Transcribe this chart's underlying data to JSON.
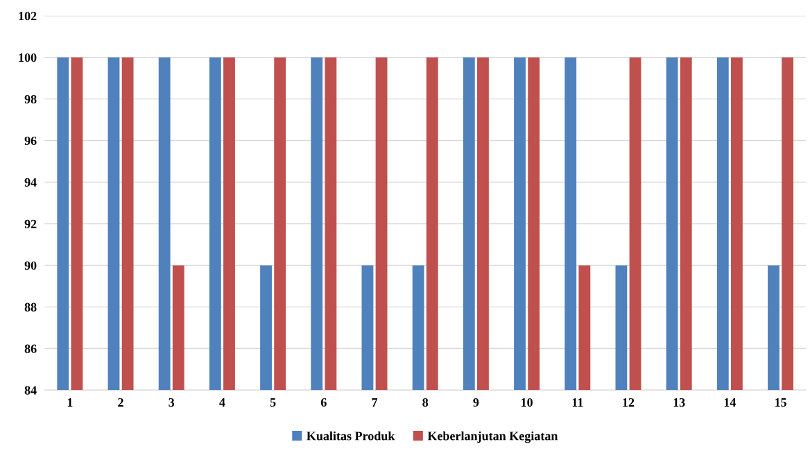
{
  "chart_data": {
    "type": "bar",
    "categories": [
      "1",
      "2",
      "3",
      "4",
      "5",
      "6",
      "7",
      "8",
      "9",
      "10",
      "11",
      "12",
      "13",
      "14",
      "15"
    ],
    "series": [
      {
        "name": "Kualitas Produk",
        "color": "#4f81bd",
        "values": [
          100,
          100,
          100,
          100,
          90,
          100,
          90,
          90,
          100,
          100,
          100,
          90,
          100,
          100,
          90
        ]
      },
      {
        "name": "Keberlanjutan Kegiatan",
        "color": "#c0504d",
        "values": [
          100,
          100,
          90,
          100,
          100,
          100,
          100,
          100,
          100,
          100,
          90,
          100,
          100,
          100,
          100
        ]
      }
    ],
    "ylim": [
      84,
      102
    ],
    "yticks": [
      84,
      86,
      88,
      90,
      92,
      94,
      96,
      98,
      100,
      102
    ],
    "grid": "y",
    "legend": "bottom"
  }
}
